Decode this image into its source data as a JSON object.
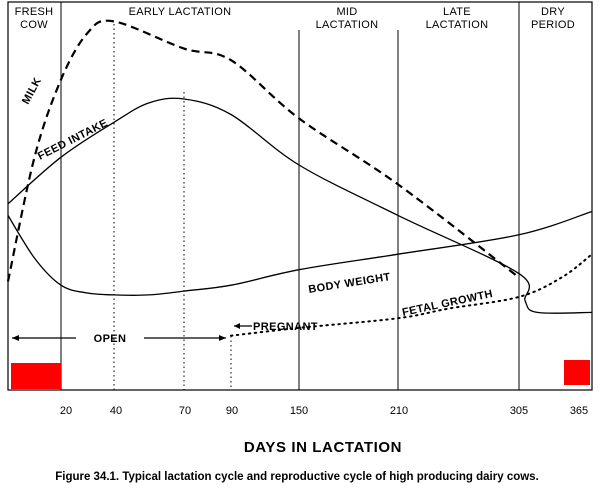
{
  "chart_data": {
    "type": "line",
    "xlabel": "DAYS IN LACTATION",
    "caption": "Figure 34.1. Typical lactation cycle and reproductive cycle of high producing dairy cows.",
    "phases": [
      {
        "line1": "FRESH",
        "line2": "COW"
      },
      {
        "line1": "",
        "line2": "EARLY LACTATION"
      },
      {
        "line1": "MID",
        "line2": "LACTATION"
      },
      {
        "line1": "LATE",
        "line2": "LACTATION"
      },
      {
        "line1": "DRY",
        "line2": "PERIOD"
      }
    ],
    "x_ticks": [
      "20",
      "40",
      "70",
      "90",
      "150",
      "210",
      "305",
      "365"
    ],
    "labels": {
      "milk": "MILK",
      "feed_intake": "FEED INTAKE",
      "body_weight": "BODY WEIGHT",
      "fetal_growth": "FETAL GROWTH",
      "pregnant": "PREGNANT",
      "open": "OPEN"
    },
    "series": [
      {
        "name": "MILK",
        "style": "dashed",
        "points": [
          [
            0,
            28
          ],
          [
            10,
            60
          ],
          [
            20,
            80
          ],
          [
            30,
            92
          ],
          [
            40,
            95
          ],
          [
            70,
            88
          ],
          [
            90,
            85
          ],
          [
            150,
            70
          ],
          [
            210,
            53
          ],
          [
            305,
            29
          ]
        ]
      },
      {
        "name": "FEED INTAKE",
        "style": "solid",
        "points": [
          [
            0,
            48
          ],
          [
            20,
            60
          ],
          [
            40,
            69
          ],
          [
            55,
            74
          ],
          [
            70,
            75
          ],
          [
            90,
            71
          ],
          [
            150,
            58
          ],
          [
            210,
            45
          ],
          [
            305,
            30
          ],
          [
            310,
            23
          ],
          [
            320,
            20
          ],
          [
            365,
            20
          ]
        ]
      },
      {
        "name": "BODY WEIGHT",
        "style": "solid",
        "points": [
          [
            0,
            45
          ],
          [
            10,
            34
          ],
          [
            20,
            27
          ],
          [
            30,
            25
          ],
          [
            40,
            24.5
          ],
          [
            55,
            24.5
          ],
          [
            70,
            25.5
          ],
          [
            90,
            27
          ],
          [
            150,
            31
          ],
          [
            210,
            35
          ],
          [
            305,
            40
          ],
          [
            365,
            46
          ]
        ]
      },
      {
        "name": "FETAL GROWTH",
        "style": "dotted",
        "points": [
          [
            90,
            14
          ],
          [
            150,
            16
          ],
          [
            210,
            18.5
          ],
          [
            250,
            21
          ],
          [
            305,
            24
          ],
          [
            340,
            29
          ],
          [
            365,
            35
          ]
        ]
      }
    ],
    "colors": {
      "marker": "#ff0000",
      "ink": "#000000"
    }
  }
}
